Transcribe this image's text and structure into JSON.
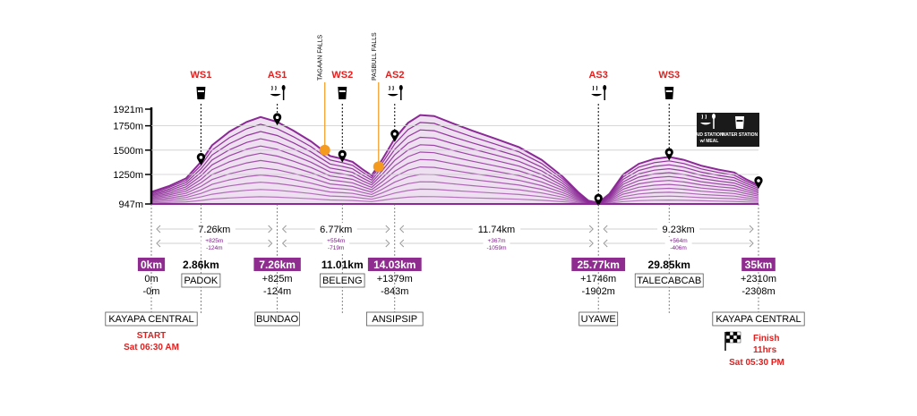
{
  "chart_data": {
    "type": "area",
    "title": "",
    "xlabel": "",
    "ylabel": "",
    "x_unit": "km",
    "y_unit": "m",
    "xlim": [
      0,
      35
    ],
    "ylim": [
      947,
      1921
    ],
    "y_ticks": [
      "1921m",
      "1750m",
      "1500m",
      "1250m",
      "947m"
    ],
    "y_tick_values": [
      1921,
      1750,
      1500,
      1250,
      947
    ],
    "profile": {
      "x": [
        0,
        1,
        2,
        2.86,
        3.5,
        4.5,
        5.5,
        6.3,
        7.26,
        8.2,
        9.2,
        10.3,
        11.01,
        11.6,
        12.2,
        12.7,
        13.3,
        14.03,
        14.8,
        15.5,
        16.3,
        17.3,
        18.5,
        19.8,
        21.2,
        22.5,
        23.7,
        24.6,
        25.2,
        25.77,
        26.4,
        27.2,
        28.1,
        29.0,
        29.85,
        30.7,
        31.7,
        32.7,
        33.6,
        34.3,
        35
      ],
      "y": [
        1070,
        1130,
        1210,
        1380,
        1550,
        1690,
        1790,
        1840,
        1790,
        1700,
        1590,
        1440,
        1410,
        1380,
        1300,
        1240,
        1400,
        1620,
        1780,
        1860,
        1850,
        1780,
        1700,
        1620,
        1530,
        1400,
        1230,
        1070,
        980,
        960,
        1050,
        1250,
        1360,
        1410,
        1430,
        1400,
        1340,
        1300,
        1270,
        1200,
        1140
      ]
    },
    "stations": [
      {
        "code": "WS1",
        "km": 2.86,
        "type": "water station",
        "icon": "water-station-icon"
      },
      {
        "code": "AS1",
        "km": 7.26,
        "type": "aid station w/ meal",
        "icon": "aid-station-icon"
      },
      {
        "code": "WS2",
        "km": 11.01,
        "type": "water station",
        "icon": "water-station-icon"
      },
      {
        "code": "AS2",
        "km": 14.03,
        "type": "aid station w/ meal",
        "icon": "aid-station-icon"
      },
      {
        "code": "AS3",
        "km": 25.77,
        "type": "aid station w/ meal",
        "icon": "aid-station-icon"
      },
      {
        "code": "WS3",
        "km": 29.85,
        "type": "water station",
        "icon": "water-station-icon"
      }
    ],
    "landmarks": [
      {
        "name": "TAGAAN FALLS",
        "km": 10.0,
        "elev": 1500
      },
      {
        "name": "PASBULL FALLS",
        "km": 13.1,
        "elev": 1330
      }
    ],
    "legend": {
      "aid_line1": "AID STATION",
      "aid_line2": "w/ MEAL",
      "water": "WATER STATION",
      "placement": "top-right"
    },
    "segments": [
      {
        "from": 0,
        "to": 7.26,
        "distance": "7.26km",
        "gain": "+825m",
        "loss": "-124m"
      },
      {
        "from": 7.26,
        "to": 14.03,
        "distance": "6.77km",
        "gain": "+554m",
        "loss": "-719m"
      },
      {
        "from": 14.03,
        "to": 25.77,
        "distance": "11.74km",
        "gain": "+367m",
        "loss": "-1059m"
      },
      {
        "from": 25.77,
        "to": 35,
        "distance": "9.23km",
        "gain": "+564m",
        "loss": "-406m"
      }
    ],
    "checkpoints": [
      {
        "km": 0,
        "label": "0km",
        "highlight": true,
        "gain": "0m",
        "loss": "-0m",
        "aid_name": "KAYAPA CENTRAL"
      },
      {
        "km": 2.86,
        "label": "2.86km",
        "highlight": false,
        "water_name": "PADOK"
      },
      {
        "km": 7.26,
        "label": "7.26km",
        "highlight": true,
        "gain": "+825m",
        "loss": "-124m",
        "aid_name": "BUNDAO"
      },
      {
        "km": 11.01,
        "label": "11.01km",
        "highlight": false,
        "water_name": "BELENG"
      },
      {
        "km": 14.03,
        "label": "14.03km",
        "highlight": true,
        "gain": "+1379m",
        "loss": "-843m",
        "aid_name": "ANSIPSIP"
      },
      {
        "km": 25.77,
        "label": "25.77km",
        "highlight": true,
        "gain": "+1746m",
        "loss": "-1902m",
        "aid_name": "UYAWE"
      },
      {
        "km": 29.85,
        "label": "29.85km",
        "highlight": false,
        "water_name": "TALECABCAB"
      },
      {
        "km": 35,
        "label": "35km",
        "highlight": true,
        "gain": "+2310m",
        "loss": "-2308m",
        "aid_name": "KAYAPA CENTRAL"
      }
    ],
    "start": {
      "label": "START",
      "time": "Sat 06:30 AM"
    },
    "finish": {
      "label": "Finish",
      "duration": "11hrs",
      "time": "Sat 05:30 PM"
    },
    "colors": {
      "profile": "#8b2a96",
      "highlight": "#8e2c8f",
      "station_label": "#e0201f",
      "landmark": "#f39a1f"
    }
  }
}
